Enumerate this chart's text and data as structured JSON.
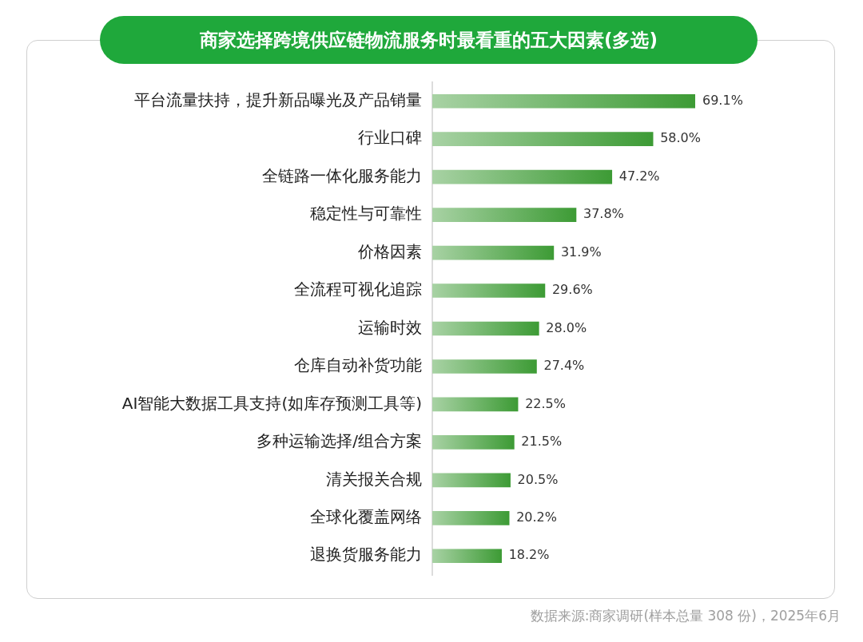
{
  "chart_data": {
    "type": "bar",
    "orientation": "horizontal",
    "title": "商家选择跨境供应链物流服务时最看重的五大因素(多选)",
    "categories": [
      "平台流量扶持，提升新品曝光及产品销量",
      "行业口碑",
      "全链路一体化服务能力",
      "稳定性与可靠性",
      "价格因素",
      "全流程可视化追踪",
      "运输时效",
      "仓库自动补货功能",
      "AI智能大数据工具支持(如库存预测工具等)",
      "多种运输选择/组合方案",
      "清关报关合规",
      "全球化覆盖网络",
      "退换货服务能力"
    ],
    "values": [
      69.1,
      58.0,
      47.2,
      37.8,
      31.9,
      29.6,
      28.0,
      27.4,
      22.5,
      21.5,
      20.5,
      20.2,
      18.2
    ],
    "value_labels": [
      "69.1%",
      "58.0%",
      "47.2%",
      "37.8%",
      "31.9%",
      "29.6%",
      "28.0%",
      "27.4%",
      "22.5%",
      "21.5%",
      "20.5%",
      "20.2%",
      "18.2%"
    ],
    "color": "#3d9b35",
    "tick_labels": "y",
    "grid": false,
    "legend": false,
    "annotations": [
      "数据来源:商家调研(样本总量 308 份)，2025年6月"
    ]
  }
}
